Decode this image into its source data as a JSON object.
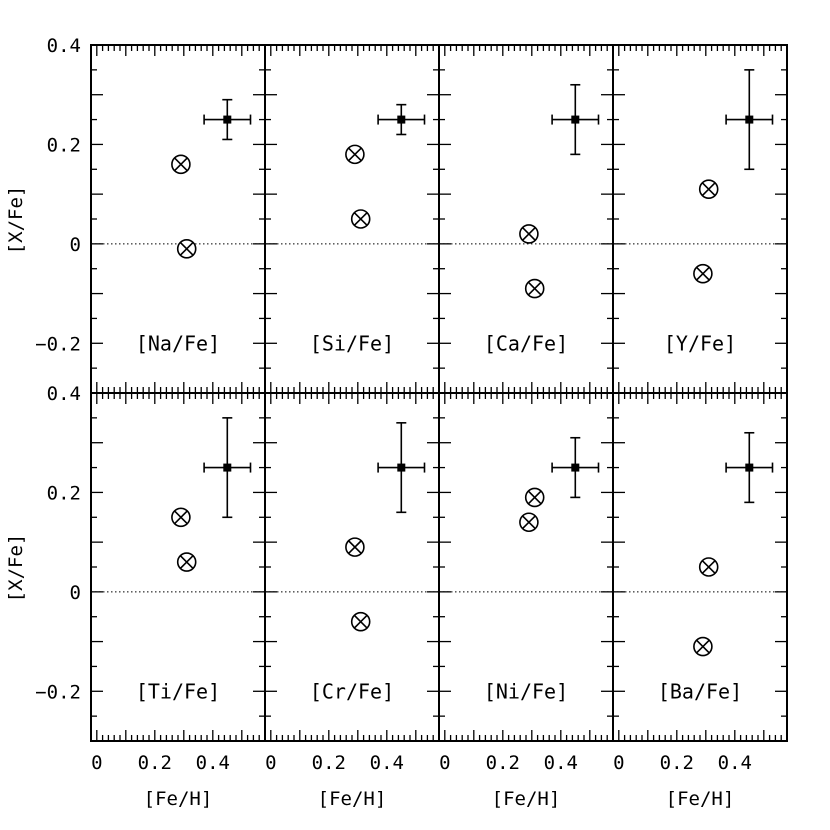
{
  "chart_data": {
    "type": "scatter",
    "layout": "2x4 grid of panels sharing axes",
    "xlabel": "[Fe/H]",
    "ylabel": "[X/Fe]",
    "xlim": [
      -0.02,
      0.58
    ],
    "ylim": [
      -0.3,
      0.4
    ],
    "x_ticks": [
      0,
      0.2,
      0.4
    ],
    "x_tick_labels": [
      "0",
      "0.2",
      "0.4"
    ],
    "y_ticks": [
      -0.2,
      0,
      0.2,
      0.4
    ],
    "y_tick_labels": [
      "−0.2",
      "0",
      "0.2",
      "0.4"
    ],
    "reference_line": {
      "y": 0,
      "style": "dotted"
    },
    "marker_style": "circle-cross",
    "panels": [
      {
        "label": "[Na/Fe]",
        "points": [
          {
            "x": 0.29,
            "y": 0.16
          },
          {
            "x": 0.31,
            "y": -0.01
          }
        ],
        "reference_point": {
          "x": 0.45,
          "y": 0.25,
          "xerr": 0.08,
          "yerr_plus": 0.04,
          "yerr_minus": 0.04
        }
      },
      {
        "label": "[Si/Fe]",
        "points": [
          {
            "x": 0.29,
            "y": 0.18
          },
          {
            "x": 0.31,
            "y": 0.05
          }
        ],
        "reference_point": {
          "x": 0.45,
          "y": 0.25,
          "xerr": 0.08,
          "yerr_plus": 0.03,
          "yerr_minus": 0.03
        }
      },
      {
        "label": "[Ca/Fe]",
        "points": [
          {
            "x": 0.29,
            "y": 0.02
          },
          {
            "x": 0.31,
            "y": -0.09
          }
        ],
        "reference_point": {
          "x": 0.45,
          "y": 0.25,
          "xerr": 0.08,
          "yerr_plus": 0.07,
          "yerr_minus": 0.07
        }
      },
      {
        "label": "[Y/Fe]",
        "points": [
          {
            "x": 0.31,
            "y": 0.11
          },
          {
            "x": 0.29,
            "y": -0.06
          }
        ],
        "reference_point": {
          "x": 0.45,
          "y": 0.25,
          "xerr": 0.08,
          "yerr_plus": 0.1,
          "yerr_minus": 0.1
        }
      },
      {
        "label": "[Ti/Fe]",
        "points": [
          {
            "x": 0.29,
            "y": 0.15
          },
          {
            "x": 0.31,
            "y": 0.06
          }
        ],
        "reference_point": {
          "x": 0.45,
          "y": 0.25,
          "xerr": 0.08,
          "yerr_plus": 0.1,
          "yerr_minus": 0.1
        }
      },
      {
        "label": "[Cr/Fe]",
        "points": [
          {
            "x": 0.29,
            "y": 0.09
          },
          {
            "x": 0.31,
            "y": -0.06
          }
        ],
        "reference_point": {
          "x": 0.45,
          "y": 0.25,
          "xerr": 0.08,
          "yerr_plus": 0.09,
          "yerr_minus": 0.09
        }
      },
      {
        "label": "[Ni/Fe]",
        "points": [
          {
            "x": 0.31,
            "y": 0.19
          },
          {
            "x": 0.29,
            "y": 0.14
          }
        ],
        "reference_point": {
          "x": 0.45,
          "y": 0.25,
          "xerr": 0.08,
          "yerr_plus": 0.06,
          "yerr_minus": 0.06
        }
      },
      {
        "label": "[Ba/Fe]",
        "points": [
          {
            "x": 0.31,
            "y": 0.05
          },
          {
            "x": 0.29,
            "y": -0.11
          }
        ],
        "reference_point": {
          "x": 0.45,
          "y": 0.25,
          "xerr": 0.08,
          "yerr_plus": 0.07,
          "yerr_minus": 0.07
        }
      }
    ]
  }
}
